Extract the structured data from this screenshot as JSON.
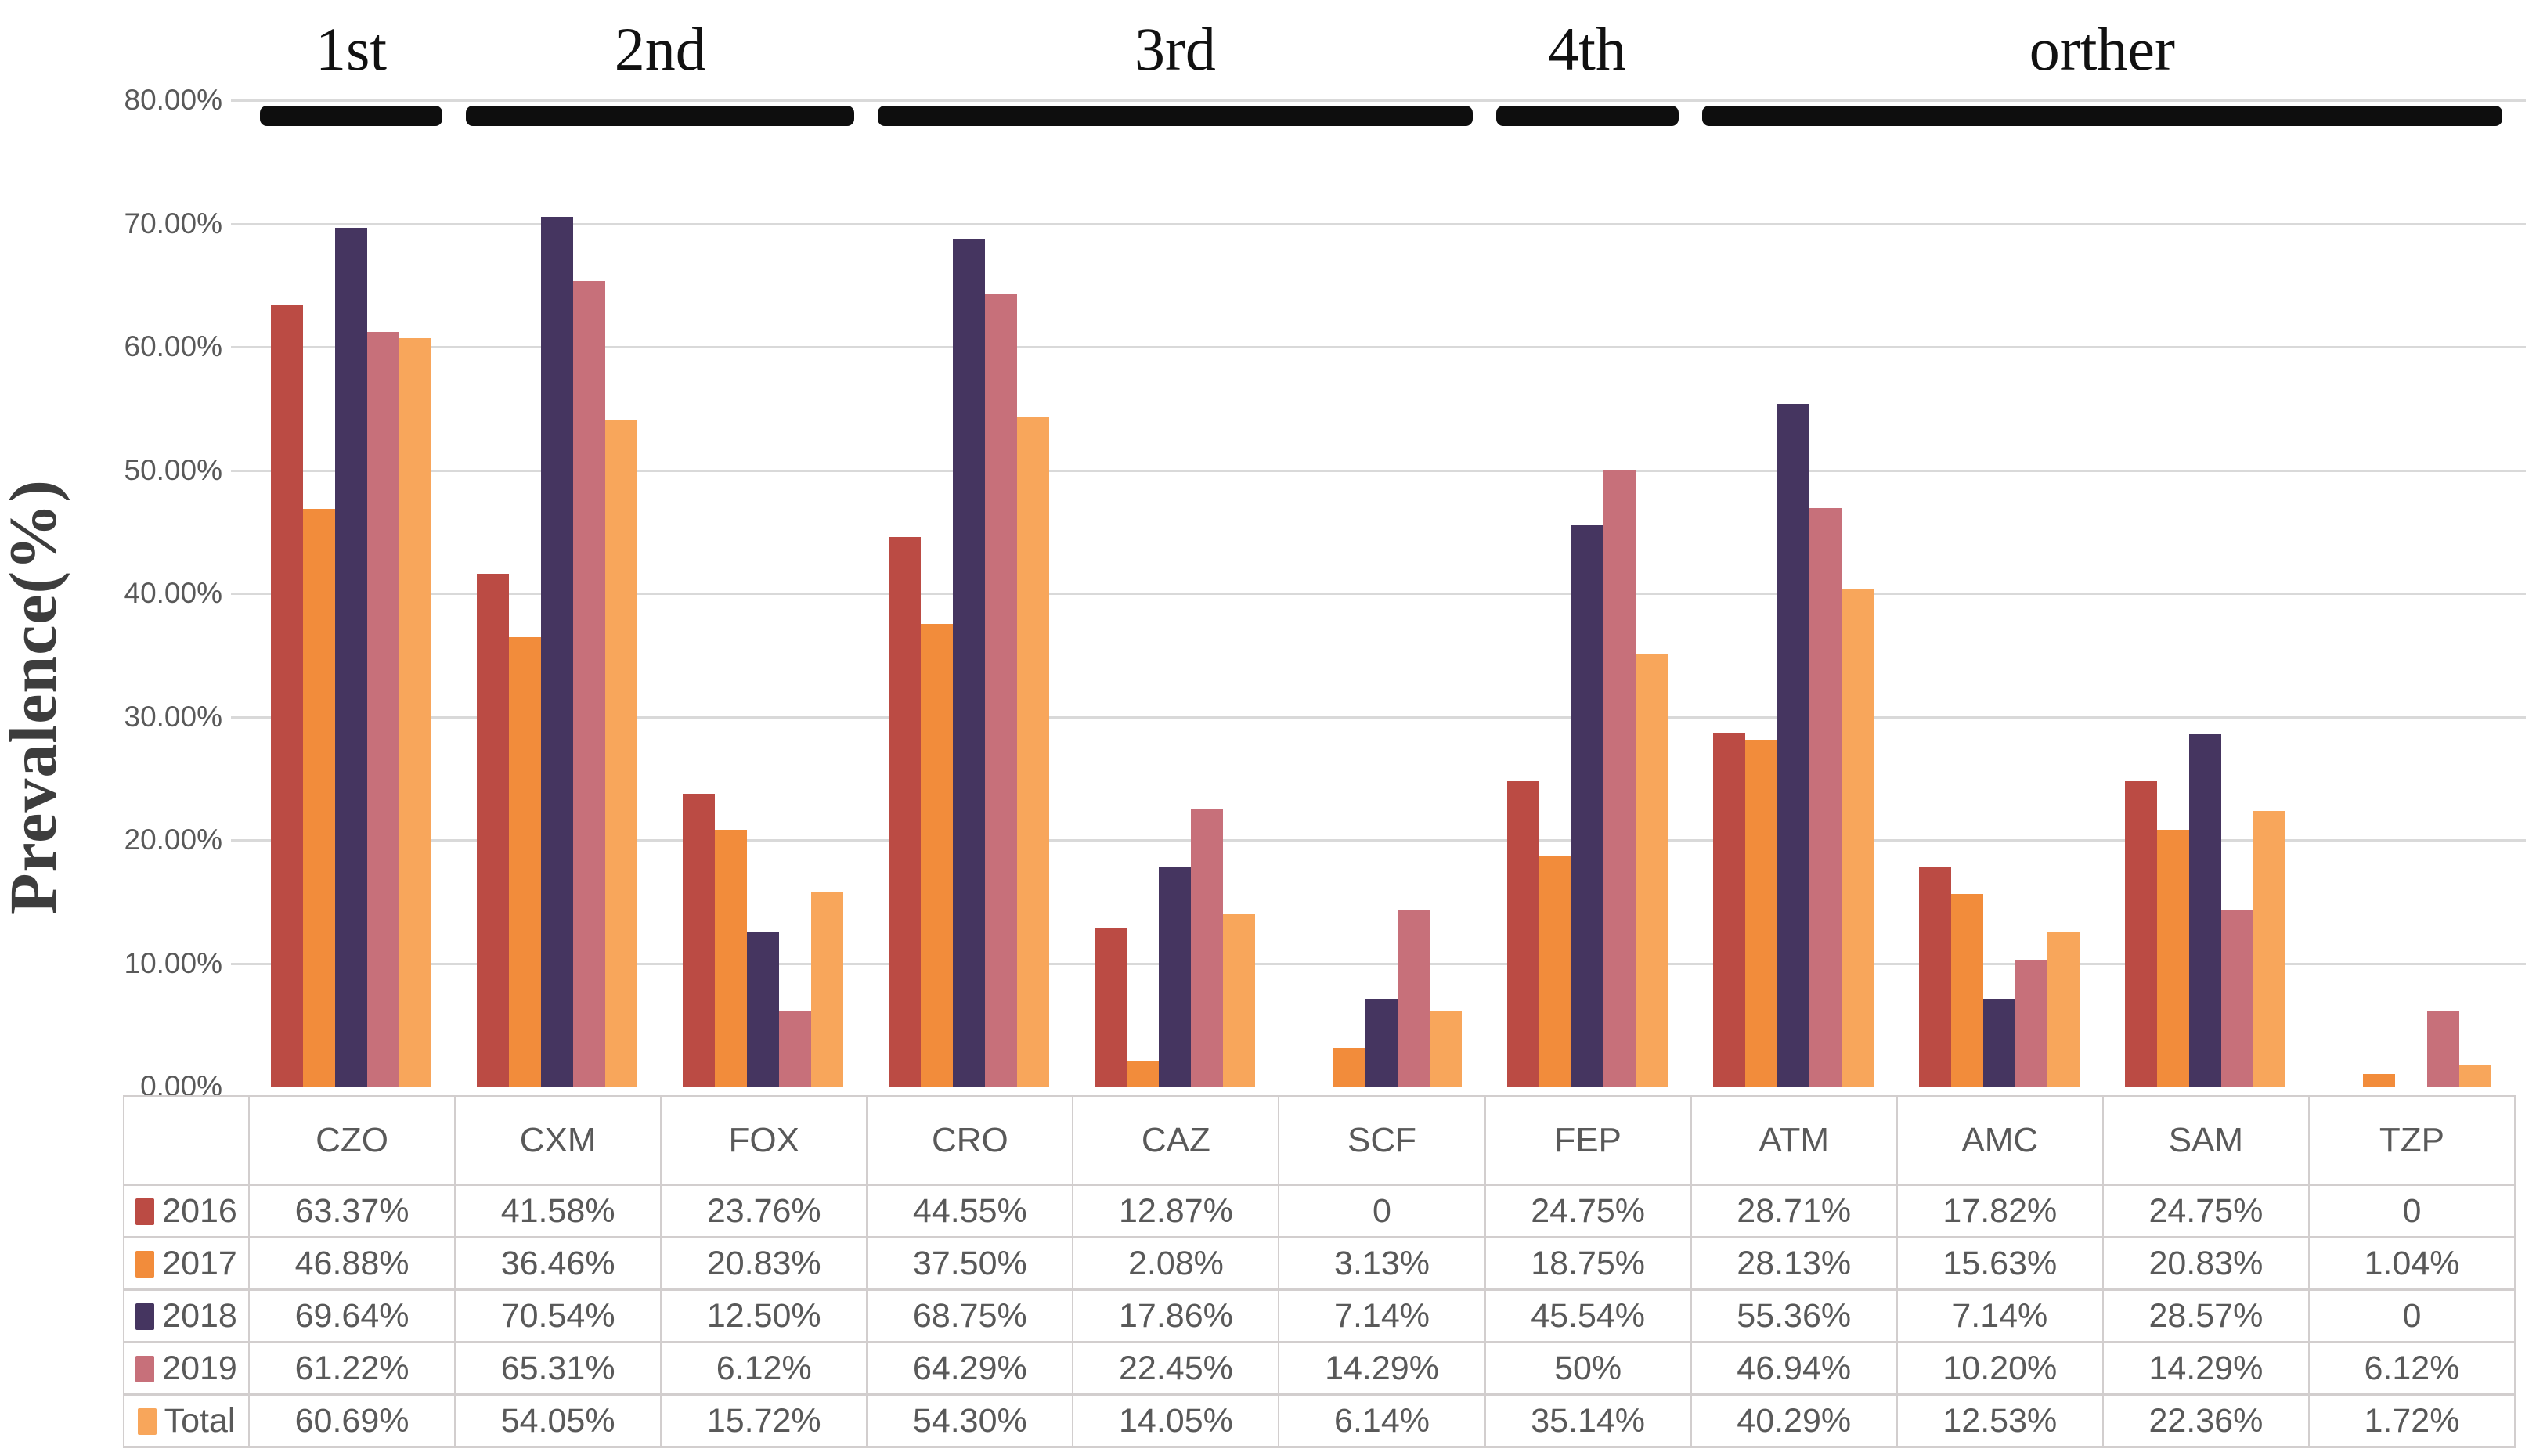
{
  "figure": {
    "kind": "clustered-bar-chart-with-data-table",
    "background": "#ffffff",
    "grid_color": "#d9d9d9",
    "table_border_color": "#d2cece",
    "text_color": "#595959",
    "group_underline_color": "#0e0e0e"
  },
  "chart_data": {
    "type": "bar",
    "title": "",
    "xlabel": "",
    "ylabel": "Prevalence(%)",
    "ylim": [
      0,
      80
    ],
    "grid": true,
    "legend_position": "table-left-column",
    "yticks": [
      {
        "value": 0,
        "label": "0.00%"
      },
      {
        "value": 10,
        "label": "10.00%"
      },
      {
        "value": 20,
        "label": "20.00%"
      },
      {
        "value": 30,
        "label": "30.00%"
      },
      {
        "value": 40,
        "label": "40.00%"
      },
      {
        "value": 50,
        "label": "50.00%"
      },
      {
        "value": 60,
        "label": "60.00%"
      },
      {
        "value": 70,
        "label": "70.00%"
      },
      {
        "value": 80,
        "label": "80.00%"
      }
    ],
    "categories": [
      "CZO",
      "CXM",
      "FOX",
      "CRO",
      "CAZ",
      "SCF",
      "FEP",
      "ATM",
      "AMC",
      "SAM",
      "TZP"
    ],
    "generation_groups": [
      {
        "label": "1st",
        "start_col": 0,
        "end_col": 0
      },
      {
        "label": "2nd",
        "start_col": 1,
        "end_col": 2
      },
      {
        "label": "3rd",
        "start_col": 3,
        "end_col": 5
      },
      {
        "label": "4th",
        "start_col": 6,
        "end_col": 6
      },
      {
        "label": "orther",
        "start_col": 7,
        "end_col": 10
      }
    ],
    "series": [
      {
        "name": "2016",
        "color": "#bb4b44",
        "values": [
          63.37,
          41.58,
          23.76,
          44.55,
          12.87,
          0,
          24.75,
          28.71,
          17.82,
          24.75,
          0
        ],
        "display": [
          "63.37%",
          "41.58%",
          "23.76%",
          "44.55%",
          "12.87%",
          "0",
          "24.75%",
          "28.71%",
          "17.82%",
          "24.75%",
          "0"
        ]
      },
      {
        "name": "2017",
        "color": "#f28c3b",
        "values": [
          46.88,
          36.46,
          20.83,
          37.5,
          2.08,
          3.13,
          18.75,
          28.13,
          15.63,
          20.83,
          1.04
        ],
        "display": [
          "46.88%",
          "36.46%",
          "20.83%",
          "37.50%",
          "2.08%",
          "3.13%",
          "18.75%",
          "28.13%",
          "15.63%",
          "20.83%",
          "1.04%"
        ]
      },
      {
        "name": "2018",
        "color": "#453560",
        "values": [
          69.64,
          70.54,
          12.5,
          68.75,
          17.86,
          7.14,
          45.54,
          55.36,
          7.14,
          28.57,
          0
        ],
        "display": [
          "69.64%",
          "70.54%",
          "12.50%",
          "68.75%",
          "17.86%",
          "7.14%",
          "45.54%",
          "55.36%",
          "7.14%",
          "28.57%",
          "0"
        ]
      },
      {
        "name": "2019",
        "color": "#c7707a",
        "values": [
          61.22,
          65.31,
          6.12,
          64.29,
          22.45,
          14.29,
          50,
          46.94,
          10.2,
          14.29,
          6.12
        ],
        "display": [
          "61.22%",
          "65.31%",
          "6.12%",
          "64.29%",
          "22.45%",
          "14.29%",
          "50%",
          "46.94%",
          "10.20%",
          "14.29%",
          "6.12%"
        ]
      },
      {
        "name": "Total",
        "color": "#f8a65b",
        "values": [
          60.69,
          54.05,
          15.72,
          54.3,
          14.05,
          6.14,
          35.14,
          40.29,
          12.53,
          22.36,
          1.72
        ],
        "display": [
          "60.69%",
          "54.05%",
          "15.72%",
          "54.30%",
          "14.05%",
          "6.14%",
          "35.14%",
          "40.29%",
          "12.53%",
          "22.36%",
          "1.72%"
        ]
      }
    ]
  }
}
